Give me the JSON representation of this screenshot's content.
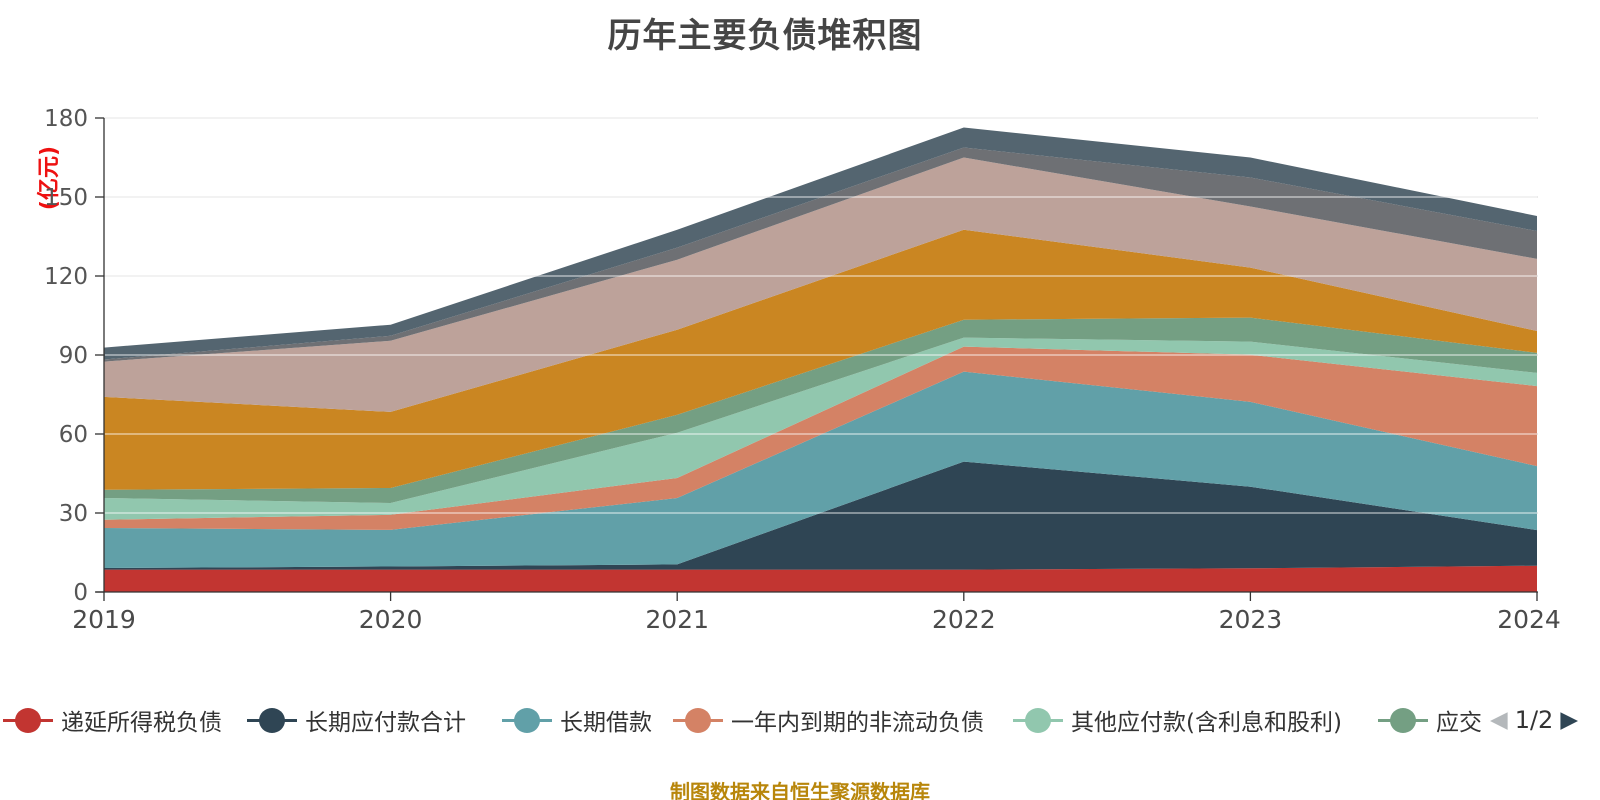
{
  "title": "历年主要负债堆积图",
  "y_axis": {
    "name": "(亿元)",
    "name_color": "#ee1111",
    "ticks": [
      "0",
      "30",
      "60",
      "90",
      "120",
      "150",
      "180"
    ]
  },
  "x_axis": {
    "categories": [
      "2019",
      "2020",
      "2021",
      "2022",
      "2023",
      "2024"
    ]
  },
  "legend": {
    "items": [
      {
        "label": "递延所得税负债",
        "color": "#c23531"
      },
      {
        "label": "长期应付款合计",
        "color": "#2f4554"
      },
      {
        "label": "长期借款",
        "color": "#61a0a8"
      },
      {
        "label": "一年内到期的非流动负债",
        "color": "#d48265"
      },
      {
        "label": "其他应付款(含利息和股利)",
        "color": "#91c7ae"
      },
      {
        "label": "应交",
        "color": "#749f83"
      }
    ],
    "pager": {
      "prev_icon": "◀",
      "page": "1/2",
      "next_icon": "▶"
    }
  },
  "source_note": "制图数据来自恒生聚源数据库",
  "chart_data": {
    "type": "area",
    "stacked": true,
    "title": "历年主要负债堆积图",
    "ylabel": "(亿元)",
    "ylim": [
      0,
      180
    ],
    "y_tick_step": 30,
    "grid": true,
    "legend_position": "bottom",
    "x": [
      "2019",
      "2020",
      "2021",
      "2022",
      "2023",
      "2024"
    ],
    "series": [
      {
        "name": "递延所得税负债",
        "color": "#c23531",
        "values": [
          8.5,
          8.5,
          8.5,
          8.5,
          9,
          10
        ]
      },
      {
        "name": "长期应付款合计",
        "color": "#2f4554",
        "values": [
          0.6,
          1.2,
          2,
          41,
          31,
          13.5
        ]
      },
      {
        "name": "长期借款",
        "color": "#61a0a8",
        "values": [
          15.2,
          13.9,
          25.2,
          34.2,
          32.2,
          24.3
        ]
      },
      {
        "name": "一年内到期的非流动负债",
        "color": "#d48265",
        "values": [
          3.1,
          5.7,
          7.6,
          9.5,
          17.9,
          30.4
        ]
      },
      {
        "name": "其他应付款(含利息和股利)",
        "color": "#91c7ae",
        "values": [
          8.3,
          4.5,
          17.2,
          3.4,
          5,
          5
        ]
      },
      {
        "name": "应交",
        "color": "#749f83",
        "values": [
          3.1,
          5.7,
          6.8,
          6.8,
          9.1,
          7.6
        ]
      },
      {
        "name": "",
        "color": "#ca8622",
        "values": [
          35.3,
          28.9,
          32.3,
          34.2,
          19,
          8.3
        ]
      },
      {
        "name": "",
        "color": "#bda29a",
        "values": [
          13.4,
          27,
          26.6,
          27.4,
          23.2,
          27.4
        ]
      },
      {
        "name": "",
        "color": "#6e7074",
        "values": [
          0.8,
          1.9,
          4.6,
          3.8,
          11,
          10.6
        ]
      },
      {
        "name": "",
        "color": "#546570",
        "values": [
          4.5,
          4.2,
          6.8,
          7.6,
          7.6,
          5.7
        ]
      }
    ],
    "note": "series 7-10 are shown in the plot but their labels are on legend page 2/2 (not visible)"
  }
}
